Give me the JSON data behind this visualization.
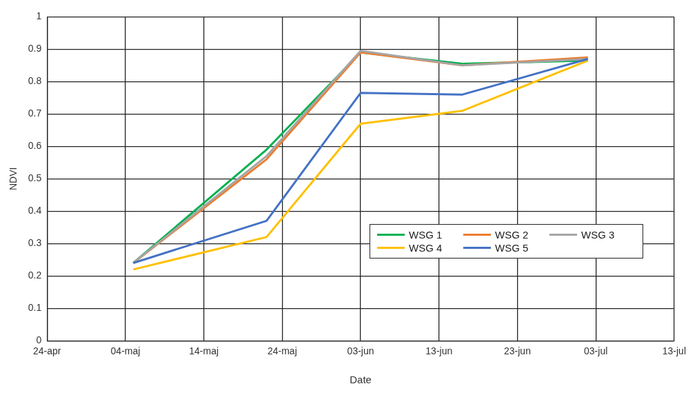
{
  "chart_data": {
    "type": "line",
    "xlabel": "Date",
    "ylabel": "NDVI",
    "x": [
      "--05-05",
      "--05-22",
      "--06-03",
      "--06-16",
      "--07-02"
    ],
    "series": [
      {
        "name": "WSG 1",
        "color": "#00b050",
        "values": [
          0.24,
          0.59,
          0.89,
          0.855,
          0.865
        ]
      },
      {
        "name": "WSG 2",
        "color": "#ed7d31",
        "values": [
          0.24,
          0.56,
          0.89,
          0.85,
          0.875
        ]
      },
      {
        "name": "WSG 3",
        "color": "#a5a5a5",
        "values": [
          0.24,
          0.57,
          0.895,
          0.85,
          0.87
        ]
      },
      {
        "name": "WSG 4",
        "color": "#ffc000",
        "values": [
          0.22,
          0.32,
          0.67,
          0.71,
          0.865
        ]
      },
      {
        "name": "WSG 5",
        "color": "#4472c4",
        "values": [
          0.24,
          0.37,
          0.765,
          0.76,
          0.87
        ]
      }
    ],
    "xlim": [
      "--04-24",
      "--07-13"
    ],
    "xticks": [
      {
        "value": "--04-24",
        "label": "24-apr"
      },
      {
        "value": "--05-04",
        "label": "04-maj"
      },
      {
        "value": "--05-14",
        "label": "14-maj"
      },
      {
        "value": "--05-24",
        "label": "24-maj"
      },
      {
        "value": "--06-03",
        "label": "03-jun"
      },
      {
        "value": "--06-13",
        "label": "13-jun"
      },
      {
        "value": "--06-23",
        "label": "23-jun"
      },
      {
        "value": "--07-03",
        "label": "03-jul"
      },
      {
        "value": "--07-13",
        "label": "13-jul"
      }
    ],
    "ylim": [
      0,
      1
    ],
    "yticks": [
      0,
      0.1,
      0.2,
      0.3,
      0.4,
      0.5,
      0.6,
      0.7,
      0.8,
      0.9,
      1
    ],
    "grid": true,
    "legend": "bottom right",
    "marker": "none",
    "line_style": "solid"
  }
}
